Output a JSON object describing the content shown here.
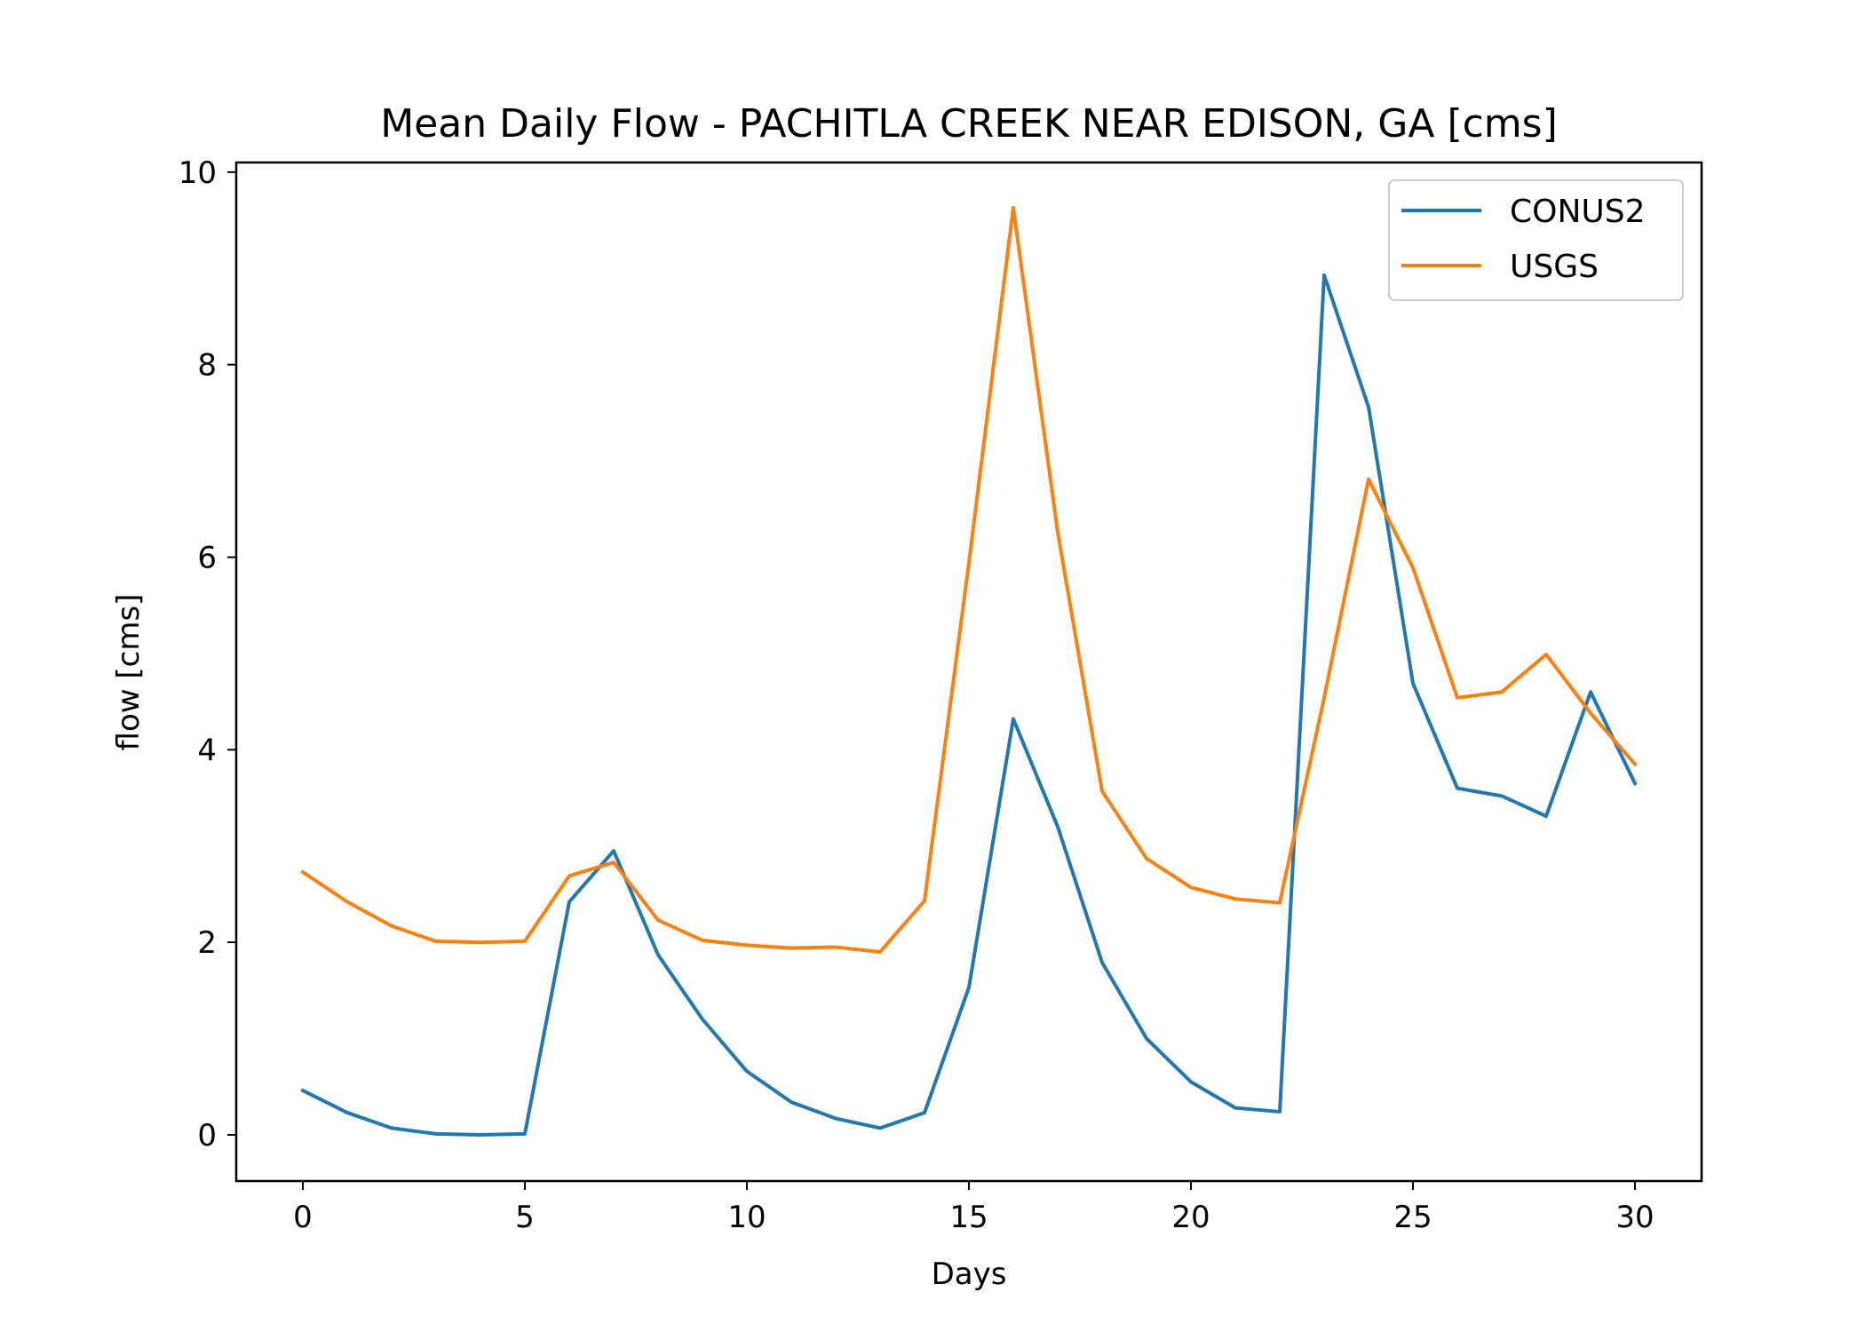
{
  "chart_data": {
    "type": "line",
    "title": "Mean Daily Flow - PACHITLA CREEK NEAR EDISON, GA [cms]",
    "xlabel": "Days",
    "ylabel": "flow [cms]",
    "xlim": [
      -1.5,
      31.5
    ],
    "ylim": [
      -0.48,
      10.1
    ],
    "xticks": [
      0,
      5,
      10,
      15,
      20,
      25,
      30
    ],
    "yticks": [
      0,
      2,
      4,
      6,
      8,
      10
    ],
    "grid": false,
    "legend_position": "top-right",
    "x": [
      0,
      1,
      2,
      3,
      4,
      5,
      6,
      7,
      8,
      9,
      10,
      11,
      12,
      13,
      14,
      15,
      16,
      17,
      18,
      19,
      20,
      21,
      22,
      23,
      24,
      25,
      26,
      27,
      28,
      29,
      30
    ],
    "series": [
      {
        "name": "CONUS2",
        "color": "#1f77b4",
        "values": [
          0.46,
          0.23,
          0.07,
          0.01,
          0.0,
          0.01,
          2.42,
          2.95,
          1.87,
          1.2,
          0.66,
          0.34,
          0.17,
          0.07,
          0.23,
          1.53,
          4.32,
          3.2,
          1.79,
          1.0,
          0.55,
          0.28,
          0.24,
          8.93,
          7.56,
          4.69,
          3.6,
          3.52,
          3.31,
          4.6,
          3.65
        ]
      },
      {
        "name": "USGS",
        "color": "#ff7f0e",
        "values": [
          2.73,
          2.42,
          2.17,
          2.01,
          2.0,
          2.01,
          2.69,
          2.83,
          2.23,
          2.02,
          1.97,
          1.94,
          1.95,
          1.9,
          2.43,
          5.94,
          9.63,
          6.26,
          3.57,
          2.87,
          2.57,
          2.45,
          2.41,
          4.54,
          6.81,
          5.89,
          4.54,
          4.6,
          4.99,
          4.38,
          3.85
        ]
      }
    ]
  }
}
